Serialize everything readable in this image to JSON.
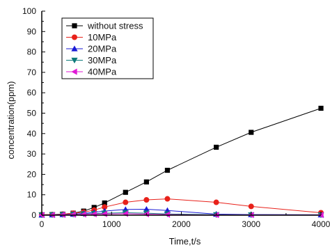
{
  "chart_data": {
    "type": "line",
    "xlabel": "Time,t/s",
    "ylabel": "concentration(ppm)",
    "xlim": [
      0,
      4000
    ],
    "ylim": [
      0,
      100
    ],
    "xticks": [
      0,
      1000,
      2000,
      3000,
      4000
    ],
    "yticks": [
      0,
      10,
      20,
      30,
      40,
      50,
      60,
      70,
      80,
      90,
      100
    ],
    "xtick_labels": [
      "0",
      "1000",
      "2000",
      "3000",
      "4000"
    ],
    "ytick_labels": [
      "0",
      "10",
      "20",
      "30",
      "40",
      "50",
      "60",
      "70",
      "80",
      "90",
      "100"
    ],
    "grid": false,
    "legend_position": "top-left",
    "series": [
      {
        "name": "without stress",
        "color": "#000000",
        "marker": "square",
        "x": [
          0,
          150,
          300,
          450,
          600,
          750,
          900,
          1200,
          1500,
          1800,
          2500,
          3000,
          4000
        ],
        "y": [
          0.2,
          0.3,
          0.5,
          1.0,
          2.0,
          3.8,
          6.0,
          11.2,
          16.3,
          22.0,
          33.3,
          40.6,
          52.4
        ]
      },
      {
        "name": "10MPa",
        "color": "#e8211a",
        "marker": "circle",
        "x": [
          0,
          150,
          300,
          450,
          600,
          750,
          900,
          1200,
          1500,
          1800,
          2500,
          3000,
          4000
        ],
        "y": [
          0.2,
          0.3,
          0.5,
          1.0,
          1.5,
          2.5,
          4.0,
          6.3,
          7.5,
          8.0,
          6.3,
          4.3,
          1.2
        ]
      },
      {
        "name": "20MPa",
        "color": "#1a1ad6",
        "marker": "triangle-up",
        "x": [
          0,
          150,
          300,
          450,
          600,
          750,
          900,
          1200,
          1500,
          1800,
          2500,
          3000,
          4000
        ],
        "y": [
          0.1,
          0.2,
          0.3,
          0.5,
          0.9,
          1.4,
          2.0,
          2.8,
          2.9,
          2.3,
          0.5,
          0.3,
          0.2
        ]
      },
      {
        "name": "30MPa",
        "color": "#0d7a7a",
        "marker": "triangle-down",
        "x": [
          0,
          150,
          300,
          450,
          600,
          750,
          900,
          1200,
          1500,
          1800,
          2500,
          3000,
          4000
        ],
        "y": [
          0.1,
          0.2,
          0.3,
          0.4,
          0.6,
          0.8,
          1.0,
          1.2,
          1.0,
          0.6,
          0.2,
          0.1,
          0.1
        ]
      },
      {
        "name": "40MPa",
        "color": "#e01ad6",
        "marker": "triangle-left",
        "x": [
          0,
          150,
          300,
          450,
          600,
          750,
          900,
          1200,
          1500,
          1800,
          2500,
          3000,
          4000
        ],
        "y": [
          0.1,
          0.1,
          0.2,
          0.3,
          0.4,
          0.5,
          0.6,
          0.7,
          0.5,
          0.3,
          0.1,
          0.1,
          0.1
        ]
      }
    ]
  }
}
